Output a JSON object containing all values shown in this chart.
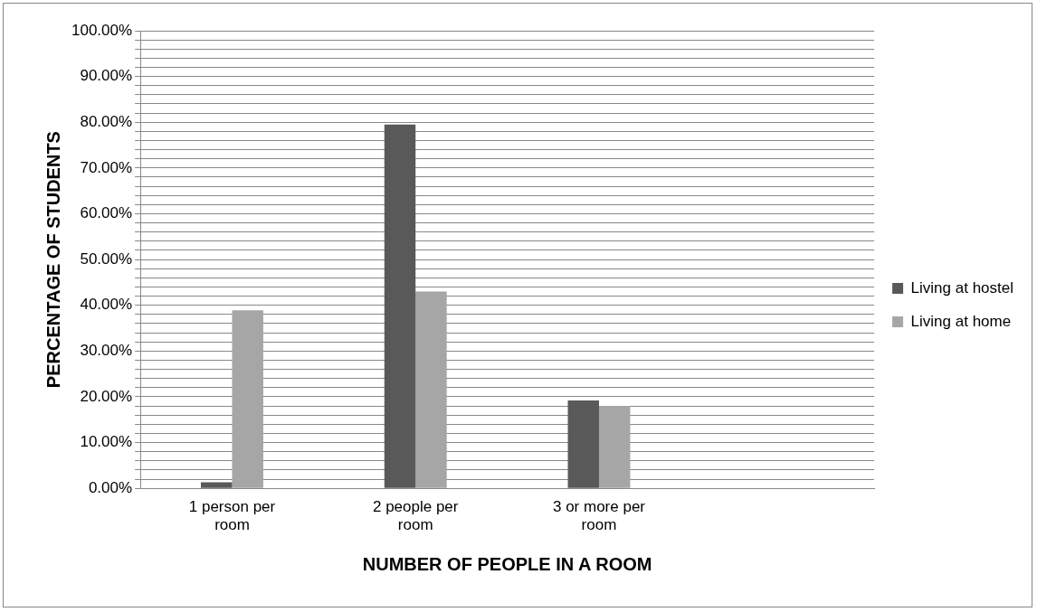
{
  "chart_data": {
    "type": "bar",
    "xlabel": "NUMBER OF PEOPLE IN A ROOM",
    "ylabel": "PERCENTAGE OF STUDENTS",
    "categories": [
      "1 person per room",
      "2 people per room",
      "3 or more per room",
      null
    ],
    "series": [
      {
        "name": "Living at hostel",
        "color": "#595959",
        "values": [
          1.3,
          79.5,
          19.2,
          null
        ]
      },
      {
        "name": "Living at home",
        "color": "#a6a6a6",
        "values": [
          38.9,
          43,
          18,
          null
        ]
      }
    ],
    "ylim": [
      0,
      100
    ],
    "yticks": [
      {
        "value": 0,
        "label": "0.00%"
      },
      {
        "value": 2,
        "label": null
      },
      {
        "value": 4,
        "label": null
      },
      {
        "value": 6,
        "label": null
      },
      {
        "value": 8,
        "label": null
      },
      {
        "value": 10,
        "label": "10.00%"
      },
      {
        "value": 12,
        "label": null
      },
      {
        "value": 14,
        "label": null
      },
      {
        "value": 16,
        "label": null
      },
      {
        "value": 18,
        "label": null
      },
      {
        "value": 20,
        "label": "20.00%"
      },
      {
        "value": 22,
        "label": null
      },
      {
        "value": 24,
        "label": null
      },
      {
        "value": 26,
        "label": null
      },
      {
        "value": 28,
        "label": null
      },
      {
        "value": 30,
        "label": "30.00%"
      },
      {
        "value": 32,
        "label": null
      },
      {
        "value": 34,
        "label": null
      },
      {
        "value": 36,
        "label": null
      },
      {
        "value": 38,
        "label": null
      },
      {
        "value": 40,
        "label": "40.00%"
      },
      {
        "value": 42,
        "label": null
      },
      {
        "value": 44,
        "label": null
      },
      {
        "value": 46,
        "label": null
      },
      {
        "value": 48,
        "label": null
      },
      {
        "value": 50,
        "label": "50.00%"
      },
      {
        "value": 52,
        "label": null
      },
      {
        "value": 54,
        "label": null
      },
      {
        "value": 56,
        "label": null
      },
      {
        "value": 58,
        "label": null
      },
      {
        "value": 60,
        "label": "60.00%"
      },
      {
        "value": 62,
        "label": null
      },
      {
        "value": 64,
        "label": null
      },
      {
        "value": 66,
        "label": null
      },
      {
        "value": 68,
        "label": null
      },
      {
        "value": 70,
        "label": "70.00%"
      },
      {
        "value": 72,
        "label": null
      },
      {
        "value": 74,
        "label": null
      },
      {
        "value": 76,
        "label": null
      },
      {
        "value": 78,
        "label": null
      },
      {
        "value": 80,
        "label": "80.00%"
      },
      {
        "value": 82,
        "label": null
      },
      {
        "value": 84,
        "label": null
      },
      {
        "value": 86,
        "label": null
      },
      {
        "value": 88,
        "label": null
      },
      {
        "value": 90,
        "label": "90.00%"
      },
      {
        "value": 92,
        "label": null
      },
      {
        "value": 94,
        "label": null
      },
      {
        "value": 96,
        "label": null
      },
      {
        "value": 98,
        "label": null
      },
      {
        "value": 100,
        "label": "100.00%"
      }
    ],
    "grid": "y",
    "legend": "right"
  }
}
